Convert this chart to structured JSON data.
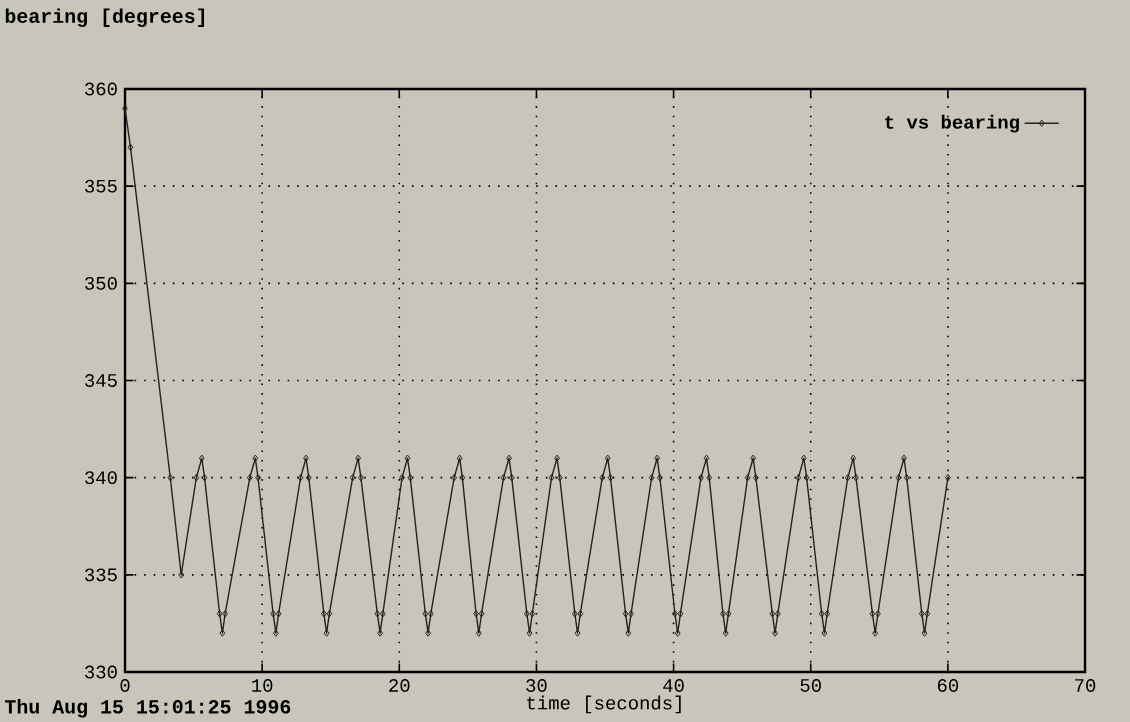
{
  "chart_data": {
    "type": "line",
    "xlabel": "time [seconds]",
    "ylabel": "bearing [degrees]",
    "annotations": [
      "Thu Aug 15 15:01:25 1996"
    ],
    "xlim": [
      0,
      70
    ],
    "ylim": [
      330,
      360
    ],
    "xticks": [
      0,
      10,
      20,
      30,
      40,
      50,
      60,
      70
    ],
    "yticks": [
      330,
      335,
      340,
      345,
      350,
      355,
      360
    ],
    "grid": true,
    "legend": "top right",
    "marker": "diamond",
    "line_style": "solid",
    "series": [
      {
        "name": "t vs bearing",
        "color": "#222222",
        "x": [
          0,
          0.4,
          3.3,
          4.1,
          5.2,
          5.6,
          5.8,
          6.9,
          7.1,
          7.3,
          9.1,
          9.5,
          9.7,
          10.8,
          11.0,
          11.2,
          12.8,
          13.2,
          13.4,
          14.5,
          14.7,
          14.9,
          16.6,
          17.0,
          17.2,
          18.4,
          18.6,
          18.8,
          20.2,
          20.6,
          20.8,
          21.9,
          22.1,
          22.3,
          24.0,
          24.4,
          24.6,
          25.6,
          25.8,
          26.0,
          27.6,
          28.0,
          28.2,
          29.3,
          29.5,
          29.7,
          31.1,
          31.5,
          31.7,
          32.8,
          33.0,
          33.2,
          34.8,
          35.2,
          35.4,
          36.5,
          36.7,
          36.9,
          38.4,
          38.8,
          39.0,
          40.1,
          40.3,
          40.5,
          42.0,
          42.4,
          42.6,
          43.6,
          43.8,
          44.0,
          45.4,
          45.8,
          46.0,
          47.2,
          47.4,
          47.6,
          49.1,
          49.5,
          49.7,
          50.8,
          51.0,
          51.2,
          52.7,
          53.1,
          53.3,
          54.5,
          54.7,
          54.9,
          56.4,
          56.8,
          57.0,
          58.1,
          58.3,
          58.5,
          60
        ],
        "values": [
          359,
          357,
          340,
          335,
          340,
          341,
          340,
          333,
          332,
          333,
          340,
          341,
          340,
          333,
          332,
          333,
          340,
          341,
          340,
          333,
          332,
          333,
          340,
          341,
          340,
          333,
          332,
          333,
          340,
          341,
          340,
          333,
          332,
          333,
          340,
          341,
          340,
          333,
          332,
          333,
          340,
          341,
          340,
          333,
          332,
          333,
          340,
          341,
          340,
          333,
          332,
          333,
          340,
          341,
          340,
          333,
          332,
          333,
          340,
          341,
          340,
          333,
          332,
          333,
          340,
          341,
          340,
          333,
          332,
          333,
          340,
          341,
          340,
          333,
          332,
          333,
          340,
          341,
          340,
          333,
          332,
          333,
          340,
          341,
          340,
          333,
          332,
          333,
          340,
          341,
          340,
          333,
          332,
          333,
          340
        ]
      }
    ]
  }
}
